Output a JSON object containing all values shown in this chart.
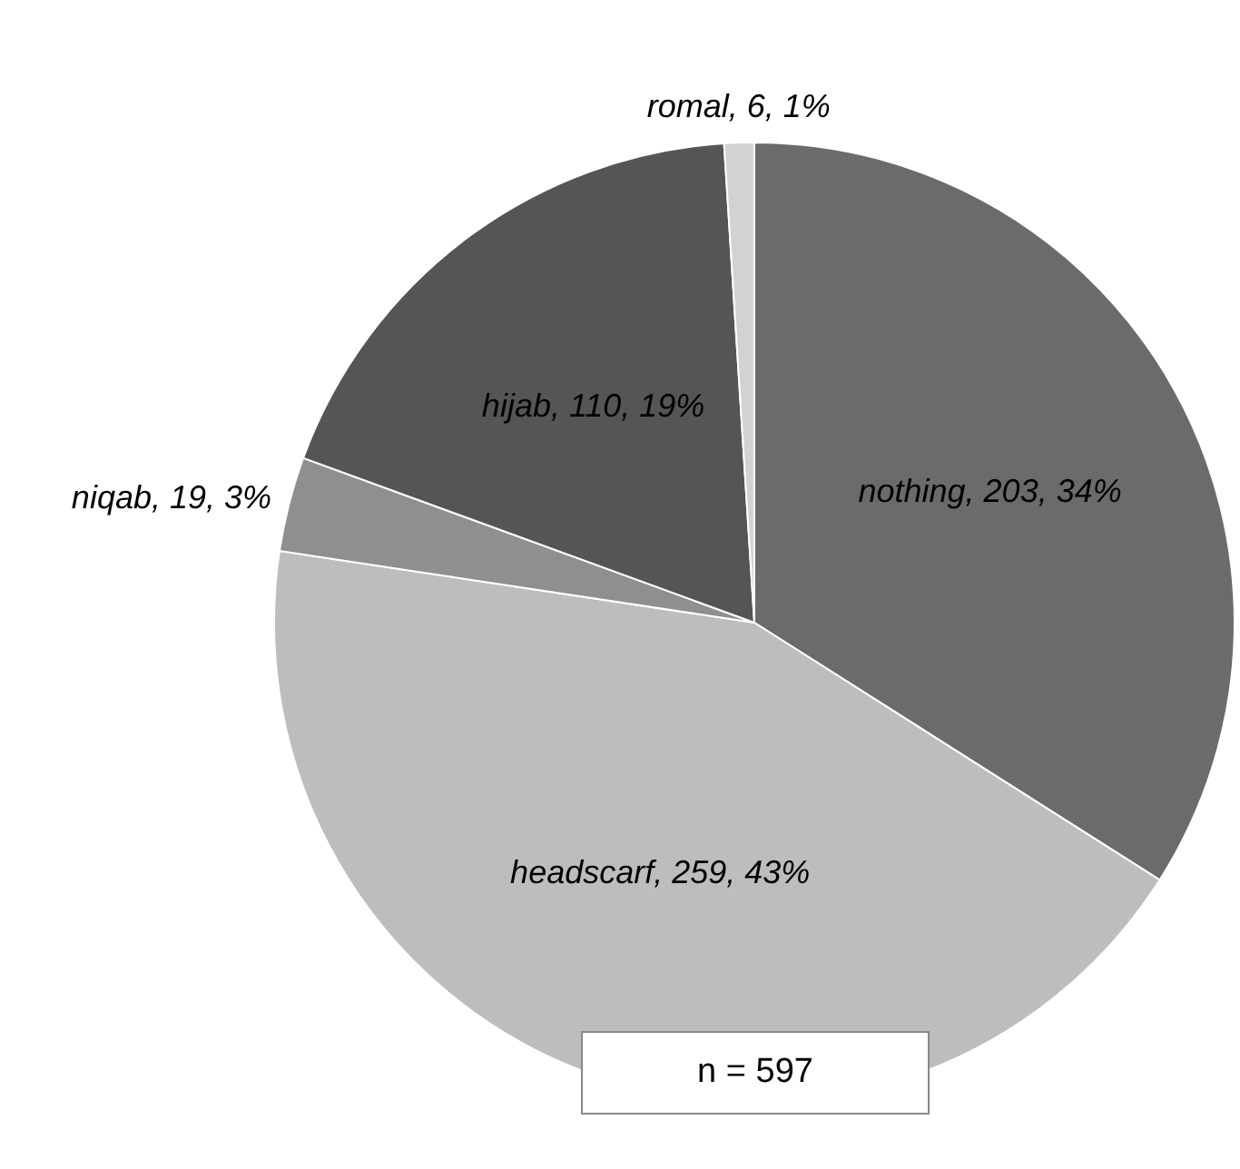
{
  "chart_data": {
    "type": "pie",
    "categories": [
      "nothing",
      "headscarf",
      "niqab",
      "hijab",
      "romal"
    ],
    "values": [
      203,
      259,
      19,
      110,
      6
    ],
    "value_labels": [
      "203, 34%",
      "259, 43%",
      "19, 3%",
      "110, 19%",
      "6, 1%"
    ],
    "colors": [
      "#6b6b6b",
      "#bdbdbd",
      "#8f8f8f",
      "#555555",
      "#d2d2d2"
    ],
    "legend": false,
    "annotations": [
      "n = 597"
    ]
  }
}
